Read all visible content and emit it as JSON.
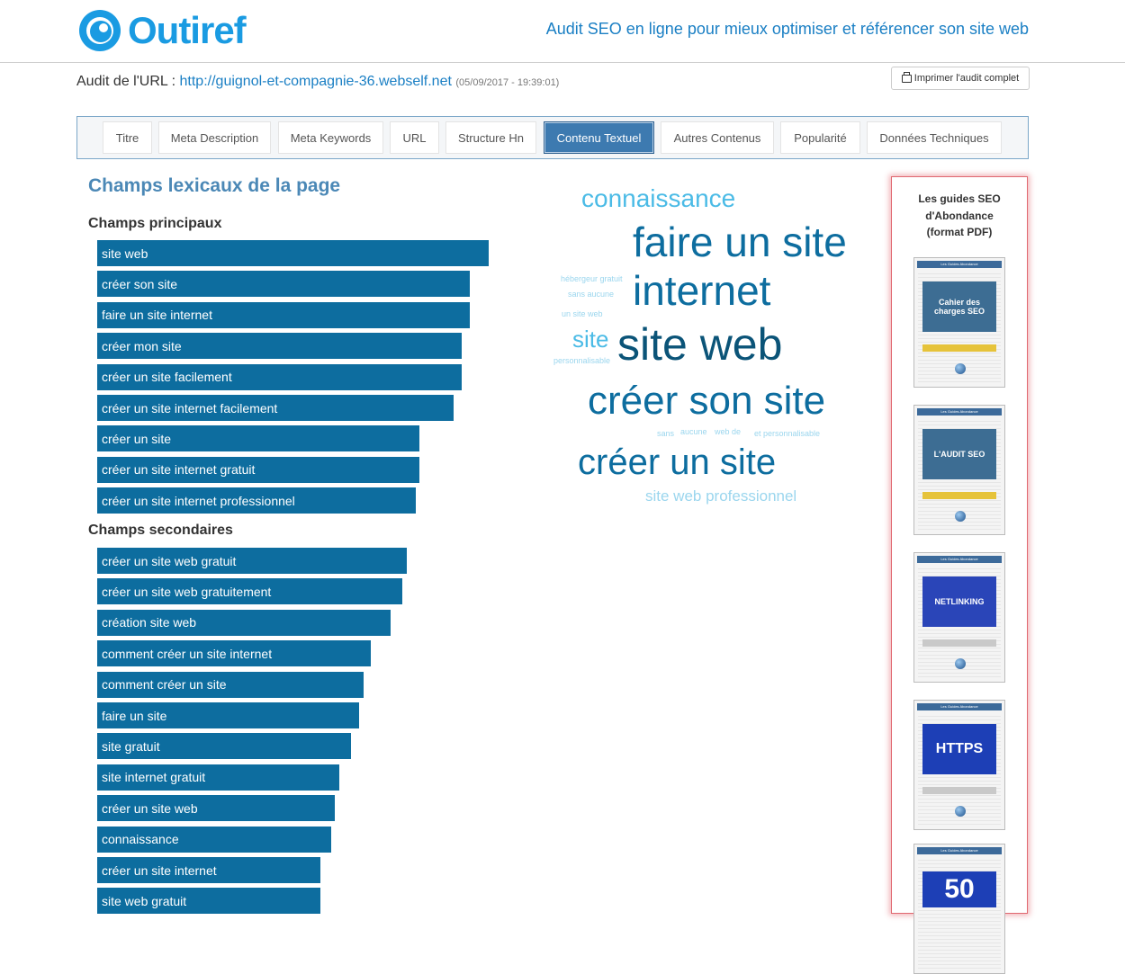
{
  "header": {
    "logo_text": "Outiref",
    "tagline": "Audit SEO en ligne pour mieux optimiser et référencer son site web"
  },
  "audit": {
    "prefix": "Audit de l'URL : ",
    "url": "http://guignol-et-compagnie-36.webself.net",
    "timestamp": "(05/09/2017 - 19:39:01)",
    "print_label": "Imprimer l'audit complet"
  },
  "tabs": [
    {
      "label": "Titre"
    },
    {
      "label": "Meta Description"
    },
    {
      "label": "Meta Keywords"
    },
    {
      "label": "URL"
    },
    {
      "label": "Structure Hn"
    },
    {
      "label": "Contenu Textuel",
      "active": true
    },
    {
      "label": "Autres Contenus"
    },
    {
      "label": "Popularité"
    },
    {
      "label": "Données Techniques"
    }
  ],
  "lexical": {
    "title": "Champs lexicaux de la page",
    "principal_heading": "Champs principaux",
    "secondary_heading": "Champs secondaires",
    "principal": [
      {
        "label": "site web",
        "weight": 1.0
      },
      {
        "label": "créer son site",
        "weight": 0.952
      },
      {
        "label": "faire un site internet",
        "weight": 0.952
      },
      {
        "label": "créer mon site",
        "weight": 0.93
      },
      {
        "label": "créer un site facilement",
        "weight": 0.93
      },
      {
        "label": "créer un site internet facilement",
        "weight": 0.911
      },
      {
        "label": "créer un site",
        "weight": 0.823
      },
      {
        "label": "créer un site internet gratuit",
        "weight": 0.823
      },
      {
        "label": "créer un site internet professionnel",
        "weight": 0.813
      }
    ],
    "secondary": [
      {
        "label": "créer un site web gratuit",
        "weight": 0.79
      },
      {
        "label": "créer un site web gratuitement",
        "weight": 0.779
      },
      {
        "label": "création site web",
        "weight": 0.75
      },
      {
        "label": "comment créer un site internet",
        "weight": 0.698
      },
      {
        "label": "comment créer un site",
        "weight": 0.68
      },
      {
        "label": "faire un site",
        "weight": 0.668
      },
      {
        "label": "site gratuit",
        "weight": 0.648
      },
      {
        "label": "site internet gratuit",
        "weight": 0.619
      },
      {
        "label": "créer un site web",
        "weight": 0.608
      },
      {
        "label": "connaissance",
        "weight": 0.598
      },
      {
        "label": "créer un site internet",
        "weight": 0.569
      },
      {
        "label": "site web gratuit",
        "weight": 0.569
      }
    ]
  },
  "cloud": {
    "words": [
      {
        "text": "connaissance"
      },
      {
        "text": "faire un site"
      },
      {
        "text": "hébergeur gratuit"
      },
      {
        "text": "internet"
      },
      {
        "text": "sans aucune"
      },
      {
        "text": "un site web"
      },
      {
        "text": "site"
      },
      {
        "text": "site web"
      },
      {
        "text": "personnalisable"
      },
      {
        "text": "créer son site"
      },
      {
        "text": "sans"
      },
      {
        "text": "aucune"
      },
      {
        "text": "web de"
      },
      {
        "text": "et personnalisable"
      },
      {
        "text": "créer un site"
      },
      {
        "text": "site web professionnel"
      }
    ]
  },
  "guides": {
    "title_line1": "Les guides SEO",
    "title_line2": "d'Abondance",
    "title_line3": "(format PDF)",
    "books": [
      {
        "series": "Les Guides Abondance",
        "title": "Cahier des charges SEO",
        "color": "#3d6d93"
      },
      {
        "series": "Les Guides Abondance",
        "title": "L'AUDIT SEO",
        "color": "#3d6d93"
      },
      {
        "series": "Les Guides Abondance",
        "title": "NETLINKING",
        "color": "#2a45b8"
      },
      {
        "series": "Les Guides Abondance",
        "title": "HTTPS",
        "color": "#1d3fb6"
      },
      {
        "series": "Les Guides Abondance",
        "title": "50",
        "color": "#1d3fb6"
      }
    ]
  },
  "colors": {
    "bar": "#0d6d9f",
    "accent": "#1a9be2",
    "link": "#1a7fc4",
    "cloud_dark": "#0b5478",
    "cloud_mid": "#0d6d9f",
    "cloud_light": "#4bbbe6",
    "cloud_pale": "#9bd6ee"
  }
}
